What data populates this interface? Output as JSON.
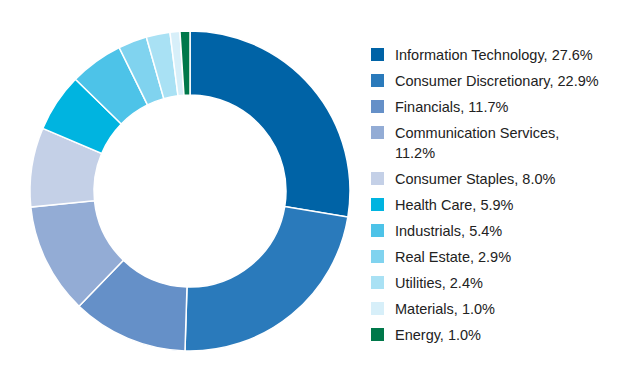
{
  "chart_data": {
    "type": "pie",
    "categories": [
      "Information Technology, 27.6%",
      "Consumer Discretionary, 22.9%",
      "Financials, 11.7%",
      "Communication Services, 11.2%",
      "Consumer Staples, 8.0%",
      "Health Care, 5.9%",
      "Industrials, 5.4%",
      "Real Estate, 2.9%",
      "Utilities, 2.4%",
      "Materials, 1.0%",
      "Energy, 1.0%"
    ],
    "values": [
      27.6,
      22.9,
      11.7,
      11.2,
      8.0,
      5.9,
      5.4,
      2.9,
      2.4,
      1.0,
      1.0
    ],
    "colors": [
      "#0063a6",
      "#2a7abb",
      "#6590c8",
      "#93acd5",
      "#c4d0e7",
      "#00b4e0",
      "#4dc3e8",
      "#80d3ef",
      "#a9e1f4",
      "#d7eff9",
      "#00784a"
    ],
    "legend": "right"
  }
}
